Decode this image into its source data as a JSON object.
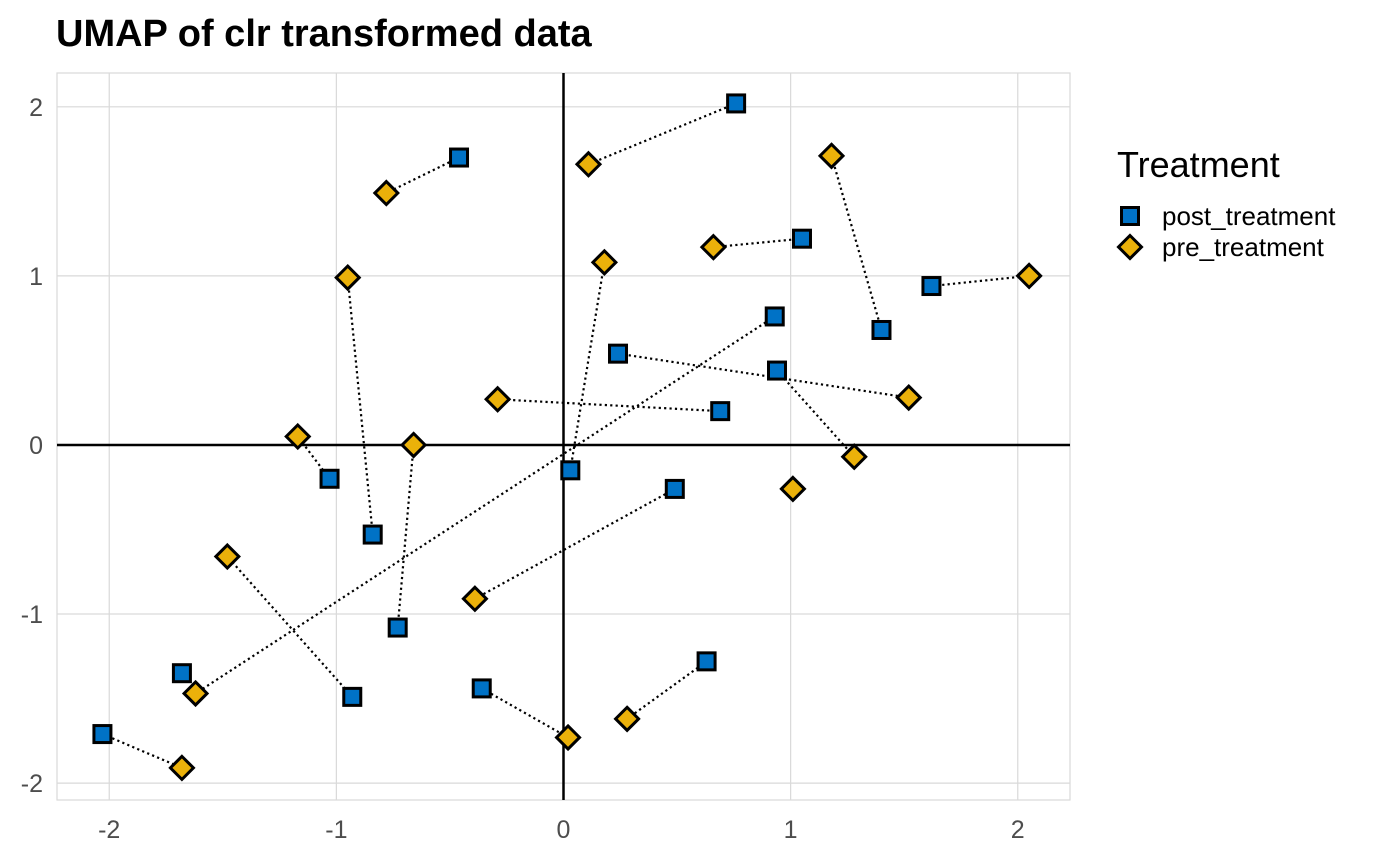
{
  "chart_data": {
    "type": "scatter",
    "title": "UMAP of clr transformed data",
    "xlabel": "",
    "ylabel": "",
    "xlim": [
      -2.23,
      2.23
    ],
    "ylim": [
      -2.1,
      2.2
    ],
    "xticks": [
      -2,
      -1,
      0,
      1,
      2
    ],
    "yticks": [
      -2,
      -1,
      0,
      1,
      2
    ],
    "xtick_labels": [
      "-2",
      "-1",
      "0",
      "1",
      "2"
    ],
    "ytick_labels": [
      "-2",
      "-1",
      "0",
      "1",
      "2"
    ],
    "grid": true,
    "reference_lines": {
      "x": 0,
      "y": 0
    },
    "legend": {
      "title": "Treatment",
      "placement": "right",
      "entries": [
        {
          "label": "post_treatment",
          "marker": "square",
          "color": "#0072C6"
        },
        {
          "label": "pre_treatment",
          "marker": "diamond",
          "color": "#EBB10A"
        }
      ]
    },
    "series": [
      {
        "name": "post_treatment",
        "marker": "square",
        "color": "#0072C6",
        "points": [
          [
            0.76,
            2.02
          ],
          [
            -0.46,
            1.7
          ],
          [
            1.05,
            1.22
          ],
          [
            1.62,
            0.94
          ],
          [
            1.4,
            0.68
          ],
          [
            0.93,
            0.76
          ],
          [
            0.24,
            0.54
          ],
          [
            0.94,
            0.44
          ],
          [
            0.69,
            0.2
          ],
          [
            0.03,
            -0.15
          ],
          [
            -1.03,
            -0.2
          ],
          [
            -0.84,
            -0.53
          ],
          [
            0.49,
            -0.26
          ],
          [
            -0.73,
            -1.08
          ],
          [
            0.63,
            -1.28
          ],
          [
            -1.68,
            -1.35
          ],
          [
            -0.36,
            -1.44
          ],
          [
            -0.93,
            -1.49
          ],
          [
            -2.03,
            -1.71
          ]
        ]
      },
      {
        "name": "pre_treatment",
        "marker": "diamond",
        "color": "#EBB10A",
        "points": [
          [
            0.11,
            1.66
          ],
          [
            1.18,
            1.71
          ],
          [
            -0.78,
            1.49
          ],
          [
            0.66,
            1.17
          ],
          [
            0.18,
            1.08
          ],
          [
            -0.95,
            0.99
          ],
          [
            2.05,
            1.0
          ],
          [
            -0.29,
            0.27
          ],
          [
            1.52,
            0.28
          ],
          [
            -1.17,
            0.05
          ],
          [
            -0.66,
            0.0
          ],
          [
            1.28,
            -0.07
          ],
          [
            1.01,
            -0.26
          ],
          [
            -1.48,
            -0.66
          ],
          [
            -0.39,
            -0.91
          ],
          [
            -1.62,
            -1.47
          ],
          [
            0.28,
            -1.62
          ],
          [
            0.02,
            -1.73
          ],
          [
            -1.68,
            -1.91
          ]
        ]
      }
    ],
    "pairs": [
      [
        [
          0.76,
          2.02
        ],
        [
          0.11,
          1.66
        ]
      ],
      [
        [
          -0.46,
          1.7
        ],
        [
          -0.78,
          1.49
        ]
      ],
      [
        [
          1.05,
          1.22
        ],
        [
          0.66,
          1.17
        ]
      ],
      [
        [
          1.62,
          0.94
        ],
        [
          2.05,
          1.0
        ]
      ],
      [
        [
          1.4,
          0.68
        ],
        [
          1.18,
          1.71
        ]
      ],
      [
        [
          0.93,
          0.76
        ],
        [
          -1.62,
          -1.47
        ]
      ],
      [
        [
          0.24,
          0.54
        ],
        [
          1.52,
          0.28
        ]
      ],
      [
        [
          0.94,
          0.44
        ],
        [
          1.28,
          -0.07
        ]
      ],
      [
        [
          0.69,
          0.2
        ],
        [
          -0.29,
          0.27
        ]
      ],
      [
        [
          0.03,
          -0.15
        ],
        [
          0.18,
          1.08
        ]
      ],
      [
        [
          -1.03,
          -0.2
        ],
        [
          -1.17,
          0.05
        ]
      ],
      [
        [
          -0.84,
          -0.53
        ],
        [
          -0.95,
          0.99
        ]
      ],
      [
        [
          0.49,
          -0.26
        ],
        [
          -0.39,
          -0.91
        ]
      ],
      [
        [
          -0.73,
          -1.08
        ],
        [
          -0.66,
          0.0
        ]
      ],
      [
        [
          0.63,
          -1.28
        ],
        [
          0.28,
          -1.62
        ]
      ],
      [
        [
          -0.36,
          -1.44
        ],
        [
          0.02,
          -1.73
        ]
      ],
      [
        [
          -0.93,
          -1.49
        ],
        [
          -1.48,
          -0.66
        ]
      ],
      [
        [
          -2.03,
          -1.71
        ],
        [
          -1.68,
          -1.91
        ]
      ]
    ]
  }
}
